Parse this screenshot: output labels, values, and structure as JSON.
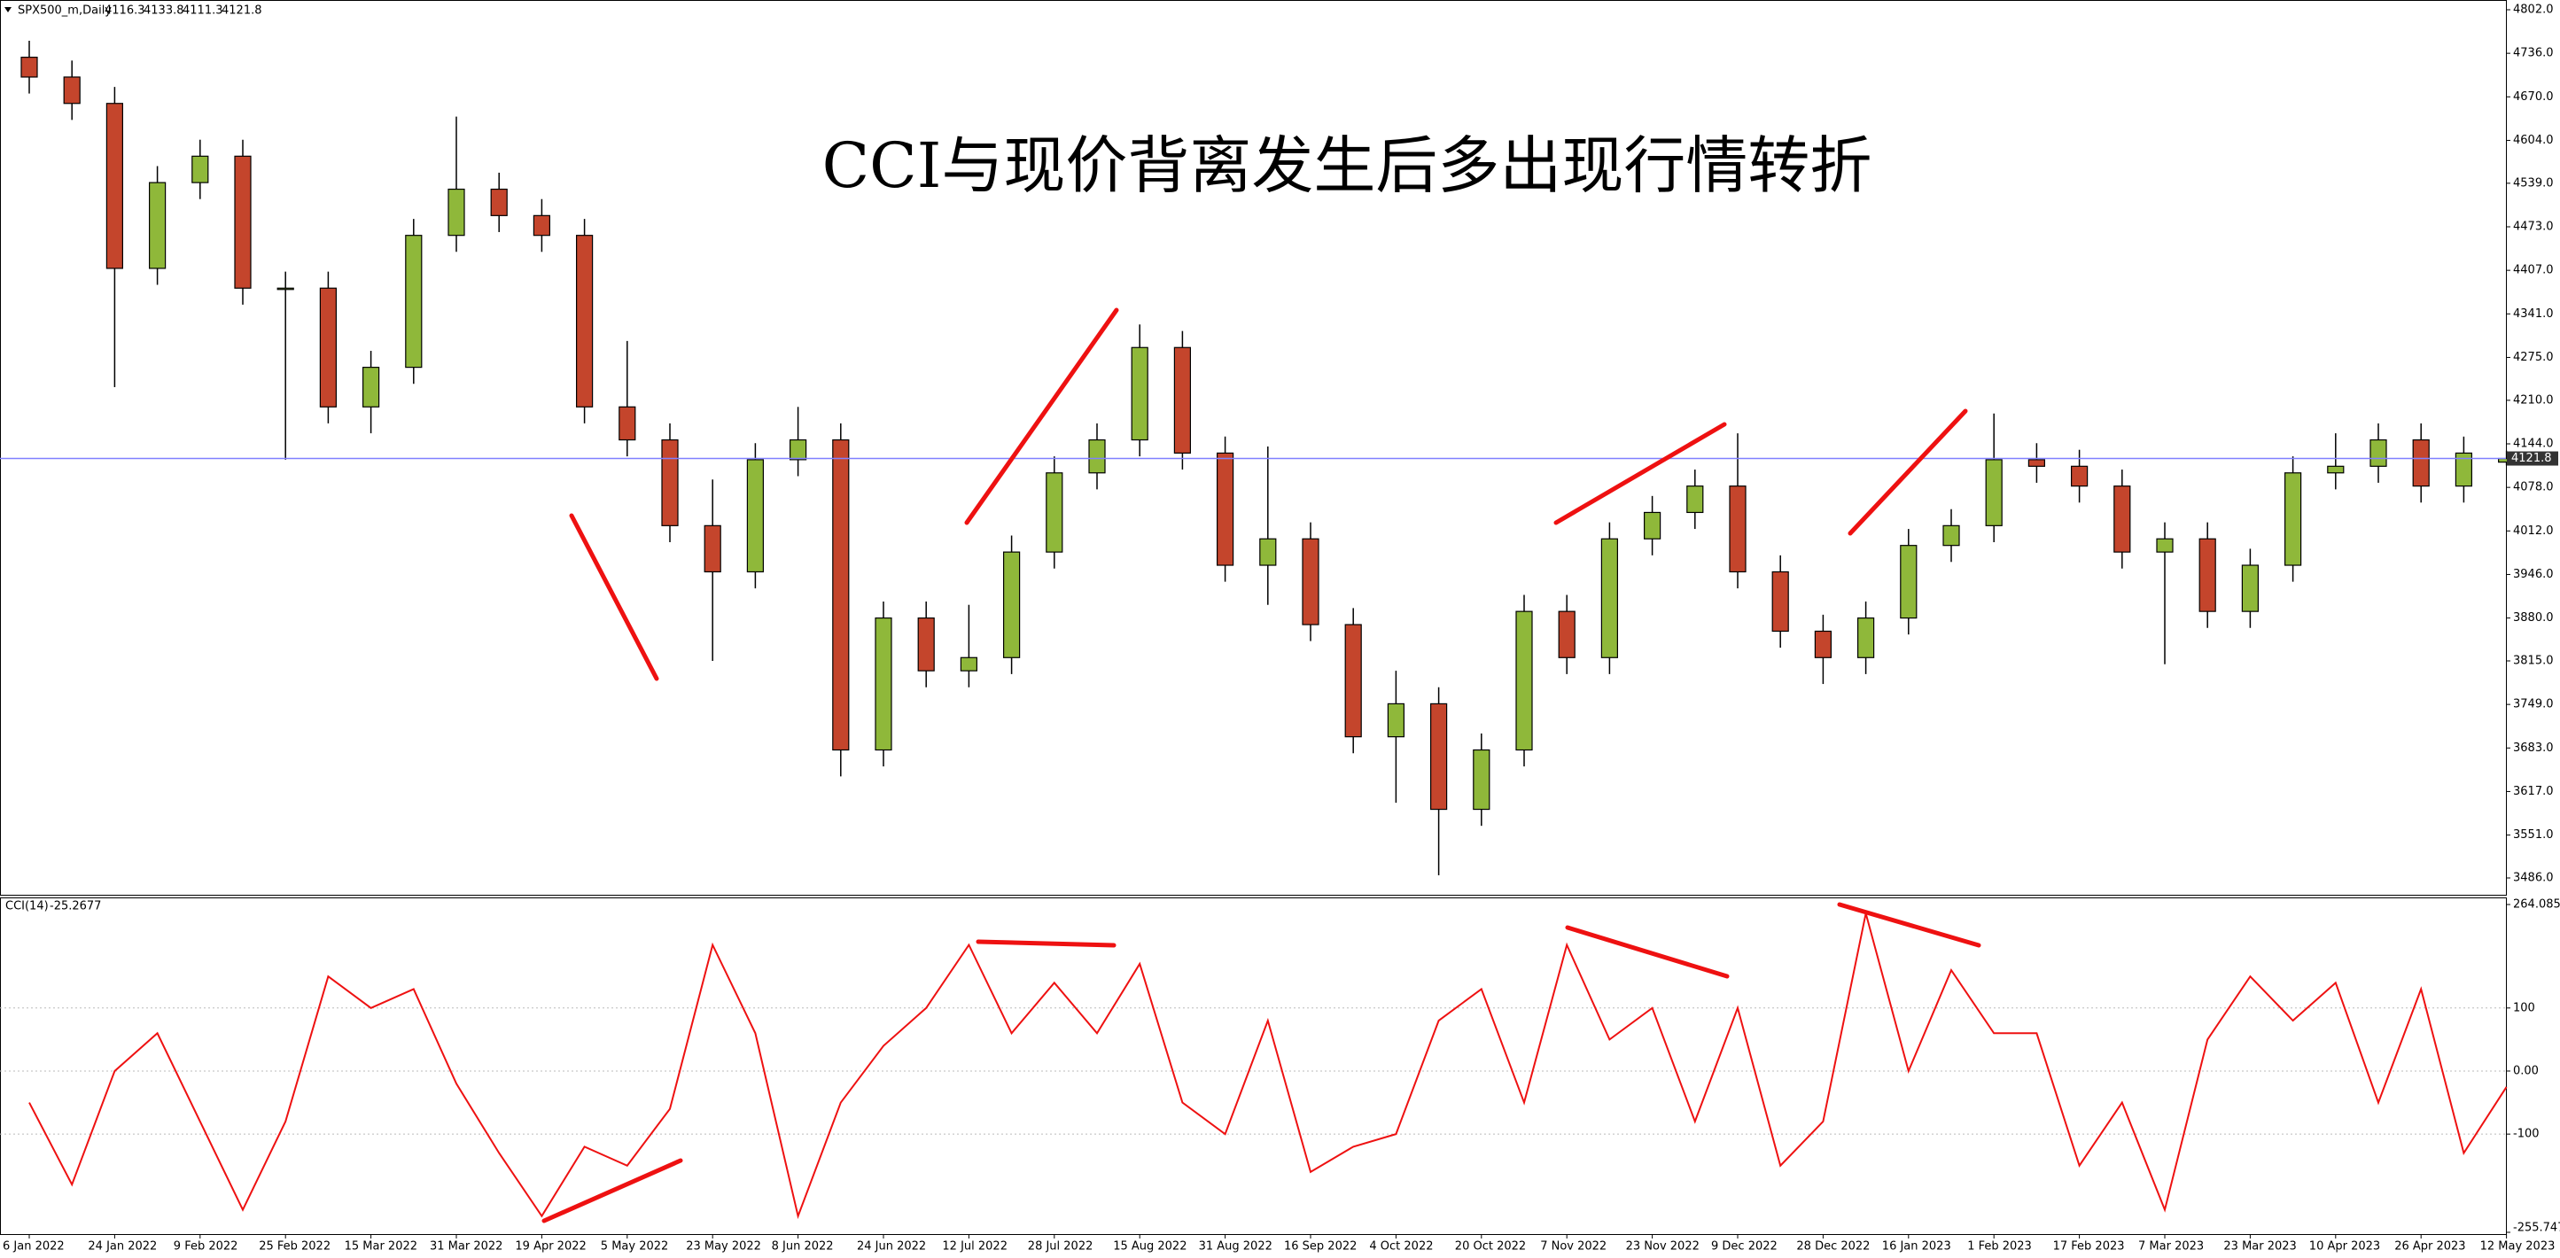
{
  "chart_data": [
    {
      "type": "candlestick",
      "title": "SPX500_m,Daily",
      "annotation": "CCI与现价背离发生后多出现行情转折",
      "categories": [
        "6 Jan 2022",
        null,
        "24 Jan 2022",
        null,
        "9 Feb 2022",
        null,
        "25 Feb 2022",
        null,
        "15 Mar 2022",
        null,
        "31 Mar 2022",
        null,
        "19 Apr 2022",
        null,
        "5 May 2022",
        null,
        "23 May 2022",
        null,
        "8 Jun 2022",
        null,
        "24 Jun 2022",
        null,
        "12 Jul 2022",
        null,
        "28 Jul 2022",
        null,
        "15 Aug 2022",
        null,
        "31 Aug 2022",
        null,
        "16 Sep 2022",
        null,
        "4 Oct 2022",
        null,
        "20 Oct 2022",
        null,
        "7 Nov 2022",
        null,
        "23 Nov 2022",
        null,
        "9 Dec 2022",
        null,
        "28 Dec 2022",
        null,
        "16 Jan 2023",
        null,
        "1 Feb 2023",
        null,
        "17 Feb 2023",
        null,
        "7 Mar 2023",
        null,
        "23 Mar 2023",
        null,
        "10 Apr 2023",
        null,
        "26 Apr 2023",
        null,
        "12 May 2023"
      ],
      "open": [
        4730,
        4700,
        4660,
        4410,
        4540,
        4580,
        4380,
        4380,
        4200,
        4260,
        4460,
        4530,
        4490,
        4460,
        4200,
        4150,
        4020,
        3950,
        4120,
        4150,
        3680,
        3880,
        3800,
        3820,
        3980,
        4100,
        4150,
        4290,
        4130,
        3960,
        4000,
        3870,
        3700,
        3750,
        3590,
        3680,
        3890,
        3820,
        4000,
        4040,
        4080,
        3950,
        3860,
        3820,
        3880,
        3990,
        4020,
        4120,
        4110,
        4080,
        3980,
        4000,
        3890,
        3960,
        4100,
        4110,
        4150,
        4080,
        4116.3
      ],
      "high": [
        4755,
        4725,
        4685,
        4565,
        4605,
        4605,
        4405,
        4405,
        4285,
        4485,
        4640,
        4555,
        4515,
        4485,
        4300,
        4175,
        4090,
        4145,
        4200,
        4175,
        3905,
        3905,
        3900,
        4005,
        4125,
        4175,
        4325,
        4315,
        4155,
        4140,
        4025,
        3895,
        3800,
        3775,
        3705,
        3915,
        3915,
        4025,
        4065,
        4105,
        4160,
        3975,
        3885,
        3905,
        4015,
        4045,
        4190,
        4145,
        4135,
        4105,
        4025,
        4025,
        3985,
        4125,
        4160,
        4175,
        4175,
        4155,
        4133.8
      ],
      "low": [
        4675,
        4635,
        4230,
        4385,
        4515,
        4355,
        4120,
        4175,
        4160,
        4235,
        4435,
        4465,
        4435,
        4175,
        4125,
        3995,
        3815,
        3925,
        4095,
        3640,
        3655,
        3775,
        3775,
        3795,
        3955,
        4075,
        4125,
        4105,
        3935,
        3900,
        3845,
        3675,
        3600,
        3490,
        3565,
        3655,
        3795,
        3795,
        3975,
        4015,
        3925,
        3835,
        3780,
        3795,
        3855,
        3965,
        3995,
        4085,
        4055,
        3955,
        3810,
        3865,
        3865,
        3935,
        4075,
        4085,
        4055,
        4055,
        4111.3
      ],
      "close": [
        4700,
        4660,
        4410,
        4540,
        4580,
        4380,
        4380,
        4200,
        4260,
        4460,
        4530,
        4490,
        4460,
        4200,
        4150,
        4020,
        3950,
        4120,
        4150,
        3680,
        3880,
        3800,
        3820,
        3980,
        4100,
        4150,
        4290,
        4130,
        3960,
        4000,
        3870,
        3700,
        3750,
        3590,
        3680,
        3890,
        3820,
        4000,
        4040,
        4080,
        3950,
        3860,
        3820,
        3880,
        3990,
        4020,
        4120,
        4110,
        4080,
        3980,
        4000,
        3890,
        3960,
        4100,
        4110,
        4150,
        4080,
        4130,
        4121.8
      ],
      "up_color": "#8fb83a",
      "down_color": "#c4452c",
      "price_line_color": "#8080ff",
      "ylim": [
        3486,
        4802
      ],
      "yticks": [
        {
          "value": 4802,
          "label": "4802.0"
        },
        {
          "value": 4736,
          "label": "4736.0"
        },
        {
          "value": 4670,
          "label": "4670.0"
        },
        {
          "value": 4604,
          "label": "4604.0"
        },
        {
          "value": 4539,
          "label": "4539.0"
        },
        {
          "value": 4473,
          "label": "4473.0"
        },
        {
          "value": 4407,
          "label": "4407.0"
        },
        {
          "value": 4341,
          "label": "4341.0"
        },
        {
          "value": 4275,
          "label": "4275.0"
        },
        {
          "value": 4210,
          "label": "4210.0"
        },
        {
          "value": 4144,
          "label": "4144.0"
        },
        {
          "value": 4078,
          "label": "4078.0"
        },
        {
          "value": 4012,
          "label": "4012.0"
        },
        {
          "value": 3946,
          "label": "3946.0"
        },
        {
          "value": 3880,
          "label": "3880.0"
        },
        {
          "value": 3815,
          "label": "3815.0"
        },
        {
          "value": 3749,
          "label": "3749.0"
        },
        {
          "value": 3683,
          "label": "3683.0"
        },
        {
          "value": 3617,
          "label": "3617.0"
        },
        {
          "value": 3551,
          "label": "3551.0"
        },
        {
          "value": 3486,
          "label": "3486.0"
        }
      ]
    },
    {
      "type": "line",
      "title": "CCI(14)",
      "color": "#ee1111",
      "grid": true,
      "values": [
        -50,
        -180,
        0,
        60,
        -80,
        -220,
        -80,
        150,
        100,
        130,
        -20,
        -130,
        -230,
        -120,
        -150,
        -60,
        200,
        60,
        -230,
        -50,
        40,
        100,
        200,
        60,
        140,
        60,
        170,
        -50,
        -100,
        80,
        -160,
        -120,
        -100,
        80,
        130,
        -50,
        200,
        50,
        100,
        -80,
        100,
        -150,
        -80,
        250,
        0,
        160,
        60,
        60,
        -150,
        -50,
        -220,
        50,
        150,
        80,
        140,
        -50,
        130,
        -130,
        -25.2677
      ],
      "ylim": [
        -255.7477,
        264.0853
      ],
      "yticks": [
        264.0853,
        100,
        {
          "value": 0,
          "label": "0.00"
        },
        -100,
        -255.7477
      ]
    }
  ]
}
